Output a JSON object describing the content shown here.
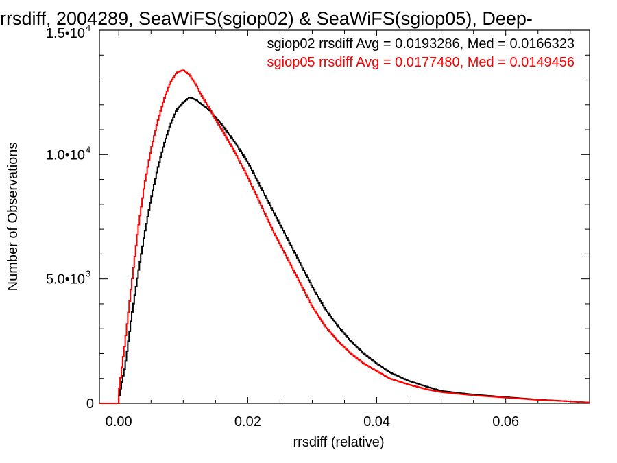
{
  "chart_data": {
    "type": "line",
    "title": "rrsdiff, 2004289, SeaWiFS(sgiop02) & SeaWiFS(sgiop05), Deep-",
    "xlabel": "rrsdiff (relative)",
    "ylabel": "Number of Observations",
    "xlim": [
      -0.003,
      0.073
    ],
    "ylim": [
      0,
      15000
    ],
    "x_ticks": [
      {
        "value": 0.0,
        "label": "0.00"
      },
      {
        "value": 0.02,
        "label": "0.02"
      },
      {
        "value": 0.04,
        "label": "0.04"
      },
      {
        "value": 0.06,
        "label": "0.06"
      }
    ],
    "y_ticks": [
      {
        "value": 0,
        "label": "0"
      },
      {
        "value": 5000,
        "label": "5.0•10",
        "exp": "3"
      },
      {
        "value": 10000,
        "label": "1.0•10",
        "exp": "4"
      },
      {
        "value": 15000,
        "label": "1.5•10",
        "exp": "4"
      }
    ],
    "grid": false,
    "legend_position": "top-right",
    "colors": {
      "sgiop02": "#000000",
      "sgiop05": "#ff0000"
    },
    "annotations": [
      {
        "text": "sgiop02 rrsdiff Avg = 0.0193286, Med = 0.0166323",
        "color": "#000000"
      },
      {
        "text": "sgiop05 rrsdiff Avg = 0.0177480, Med = 0.0149456",
        "color": "#ff0000"
      }
    ],
    "series": [
      {
        "color": "#000000",
        "x": [
          -0.003,
          0.0,
          0.001,
          0.002,
          0.003,
          0.004,
          0.005,
          0.006,
          0.007,
          0.008,
          0.009,
          0.01,
          0.011,
          0.012,
          0.013,
          0.014,
          0.015,
          0.016,
          0.018,
          0.02,
          0.022,
          0.024,
          0.026,
          0.028,
          0.03,
          0.032,
          0.034,
          0.036,
          0.038,
          0.04,
          0.042,
          0.045,
          0.048,
          0.05,
          0.055,
          0.06,
          0.065,
          0.07,
          0.073
        ],
        "values": [
          0,
          200,
          1500,
          3500,
          5200,
          6800,
          8200,
          9400,
          10400,
          11200,
          11800,
          12100,
          12300,
          12200,
          12000,
          11800,
          11500,
          11200,
          10500,
          9700,
          8700,
          7700,
          6700,
          5700,
          4700,
          3800,
          3100,
          2500,
          2000,
          1600,
          1250,
          900,
          650,
          500,
          350,
          250,
          150,
          80,
          30
        ]
      },
      {
        "color": "#ff0000",
        "x": [
          -0.003,
          0.0,
          0.001,
          0.002,
          0.003,
          0.004,
          0.005,
          0.006,
          0.007,
          0.008,
          0.009,
          0.01,
          0.011,
          0.012,
          0.013,
          0.014,
          0.015,
          0.016,
          0.018,
          0.02,
          0.022,
          0.024,
          0.026,
          0.028,
          0.03,
          0.032,
          0.034,
          0.036,
          0.038,
          0.04,
          0.042,
          0.045,
          0.048,
          0.05,
          0.055,
          0.06,
          0.065,
          0.07,
          0.073
        ],
        "values": [
          0,
          400,
          2500,
          4800,
          7000,
          8800,
          10200,
          11300,
          12200,
          12900,
          13300,
          13400,
          13200,
          12800,
          12300,
          11900,
          11400,
          11000,
          10100,
          9100,
          8000,
          6900,
          5900,
          4900,
          3900,
          3100,
          2500,
          2000,
          1600,
          1300,
          1000,
          750,
          550,
          450,
          320,
          230,
          140,
          80,
          30
        ]
      }
    ]
  }
}
